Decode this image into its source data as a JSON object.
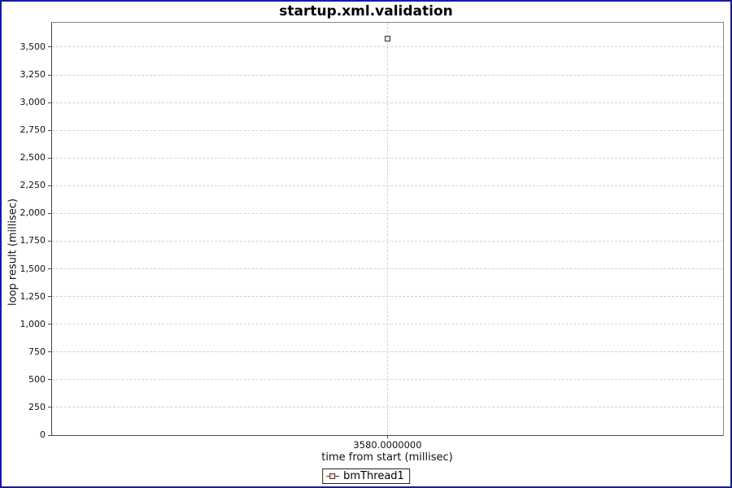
{
  "chart_data": {
    "type": "scatter",
    "title": "startup.xml.validation",
    "xlabel": "time from start (millisec)",
    "ylabel": "loop result (millisec)",
    "xlim": [
      3530,
      3630
    ],
    "ylim": [
      0,
      3720
    ],
    "grid": true,
    "legend_position": "bottom",
    "xticks": [
      {
        "value": 3580,
        "label": "3580.0000000"
      }
    ],
    "ytick_values": [
      0,
      250,
      500,
      750,
      1000,
      1250,
      1500,
      1750,
      2000,
      2250,
      2500,
      2750,
      3000,
      3250,
      3500
    ],
    "ytick_labels": [
      "0",
      "250",
      "500",
      "750",
      "1,000",
      "1,250",
      "1,500",
      "1,750",
      "2,000",
      "2,250",
      "2,500",
      "2,750",
      "3,000",
      "3,250",
      "3,500"
    ],
    "series": [
      {
        "name": "bmThread1",
        "points": [
          {
            "x": 3580,
            "y": 3580
          }
        ],
        "marker_shape": "square",
        "marker_fill": "#d8ecd8",
        "marker_outline": "#502828",
        "line_color": "#5a2a2a"
      }
    ]
  },
  "styles": {
    "page_border_color": "#1c1c9c",
    "plot_border_color": "#888888",
    "axis_line_color": "#4a4a4a",
    "gridline_color": "#d2d2d2",
    "title_color": "#000000"
  }
}
